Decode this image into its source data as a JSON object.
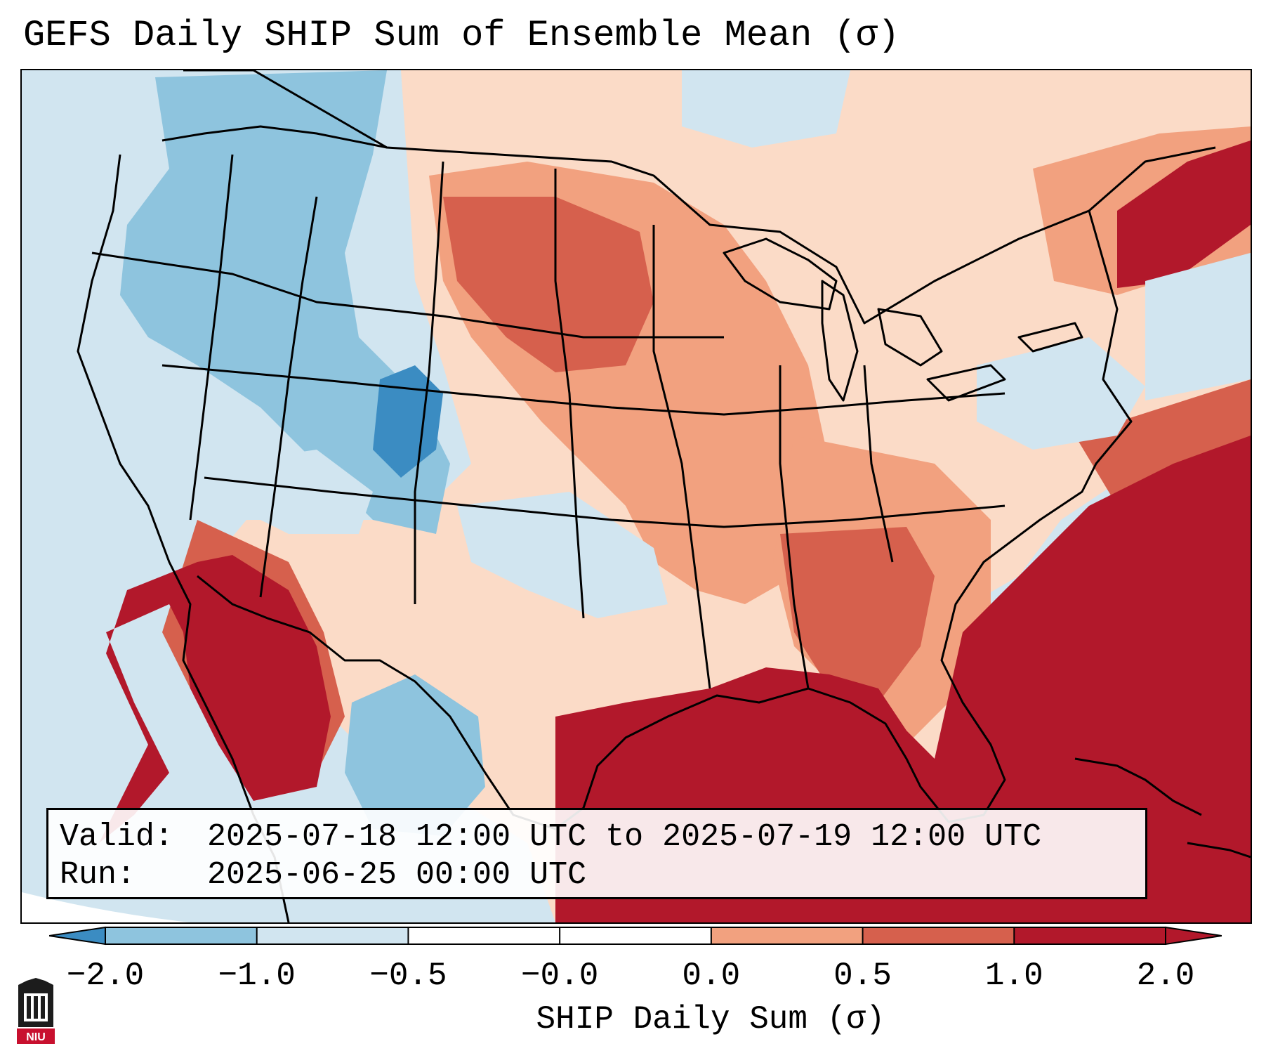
{
  "title": "GEFS Daily SHIP Sum of Ensemble Mean (σ)",
  "info": {
    "valid_label": "Valid:",
    "valid_value": "2025-07-18 12:00 UTC to 2025-07-19 12:00 UTC",
    "run_label": "Run:",
    "run_value": "2025-06-25 00:00 UTC"
  },
  "colorbar": {
    "label": "SHIP Daily Sum (σ)",
    "ticks": [
      "−2.0",
      "−1.0",
      "−0.5",
      "−0.0",
      "0.0",
      "0.5",
      "1.0",
      "2.0"
    ],
    "colors": [
      "#3b8cc2",
      "#8ec4de",
      "#d1e5f0",
      "#ffffff",
      "#fbdbc7",
      "#f2a17f",
      "#d6604d",
      "#b2182b"
    ],
    "extend": "both"
  },
  "logo": {
    "alt": "NIU",
    "text": "NIU"
  }
}
